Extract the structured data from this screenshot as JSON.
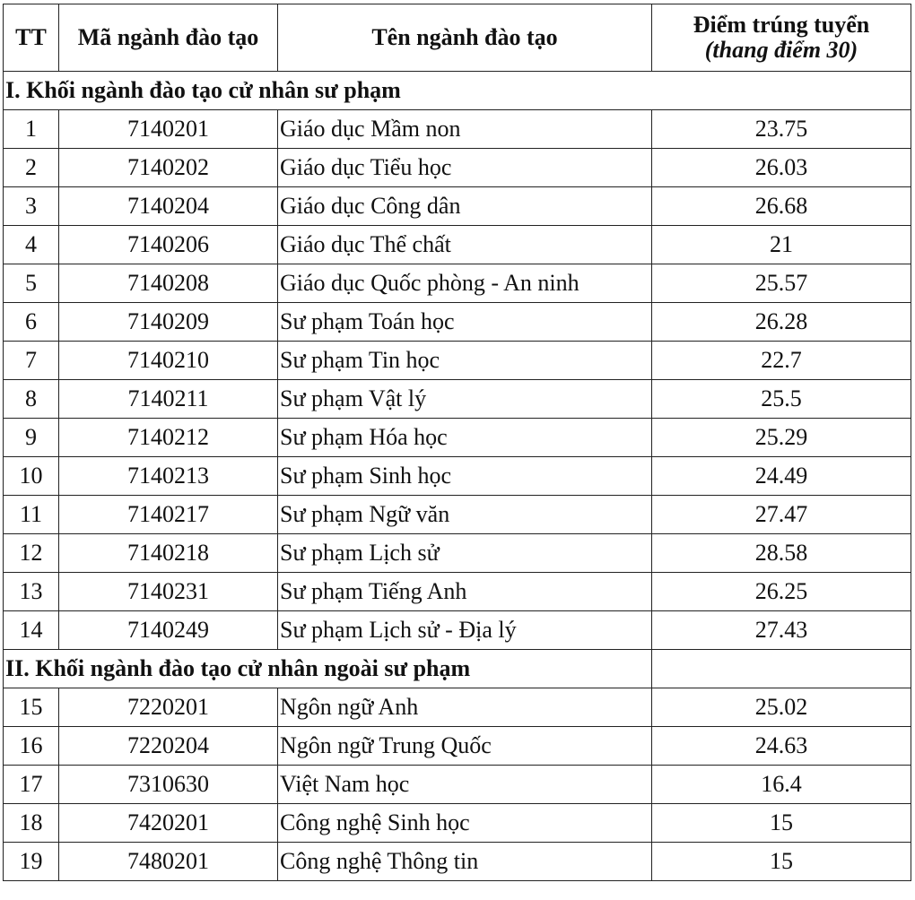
{
  "headers": {
    "tt": "TT",
    "code": "Mã ngành đào tạo",
    "name": "Tên ngành đào tạo",
    "score": "Điểm trúng tuyển",
    "score_note": "(thang điểm 30)"
  },
  "section1": {
    "title": "I. Khối ngành đào tạo cử nhân sư phạm"
  },
  "section2": {
    "title": "II. Khối ngành đào tạo cử nhân ngoài sư phạm"
  },
  "rows1": [
    {
      "tt": "1",
      "code": "7140201",
      "name": "Giáo dục Mầm non",
      "score": "23.75"
    },
    {
      "tt": "2",
      "code": "7140202",
      "name": "Giáo dục Tiểu học",
      "score": "26.03"
    },
    {
      "tt": "3",
      "code": "7140204",
      "name": "Giáo dục Công dân",
      "score": "26.68"
    },
    {
      "tt": "4",
      "code": "7140206",
      "name": "Giáo dục Thể chất",
      "score": "21"
    },
    {
      "tt": "5",
      "code": "7140208",
      "name": "Giáo dục Quốc phòng - An ninh",
      "score": "25.57"
    },
    {
      "tt": "6",
      "code": "7140209",
      "name": "Sư phạm Toán học",
      "score": "26.28"
    },
    {
      "tt": "7",
      "code": "7140210",
      "name": "Sư phạm Tin học",
      "score": "22.7"
    },
    {
      "tt": "8",
      "code": "7140211",
      "name": "Sư phạm Vật lý",
      "score": "25.5"
    },
    {
      "tt": "9",
      "code": "7140212",
      "name": "Sư phạm Hóa học",
      "score": "25.29"
    },
    {
      "tt": "10",
      "code": "7140213",
      "name": "Sư phạm Sinh học",
      "score": "24.49"
    },
    {
      "tt": "11",
      "code": "7140217",
      "name": "Sư phạm Ngữ văn",
      "score": "27.47"
    },
    {
      "tt": "12",
      "code": "7140218",
      "name": "Sư phạm Lịch sử",
      "score": "28.58"
    },
    {
      "tt": "13",
      "code": "7140231",
      "name": "Sư phạm Tiếng Anh",
      "score": "26.25"
    },
    {
      "tt": "14",
      "code": "7140249",
      "name": "Sư phạm Lịch sử - Địa lý",
      "score": "27.43"
    }
  ],
  "rows2": [
    {
      "tt": "15",
      "code": "7220201",
      "name": "Ngôn ngữ Anh",
      "score": "25.02"
    },
    {
      "tt": "16",
      "code": "7220204",
      "name": "Ngôn ngữ Trung Quốc",
      "score": "24.63"
    },
    {
      "tt": "17",
      "code": "7310630",
      "name": "Việt Nam học",
      "score": "16.4"
    },
    {
      "tt": "18",
      "code": "7420201",
      "name": "Công nghệ Sinh học",
      "score": "15"
    },
    {
      "tt": "19",
      "code": "7480201",
      "name": "Công nghệ Thông tin",
      "score": "15"
    }
  ]
}
